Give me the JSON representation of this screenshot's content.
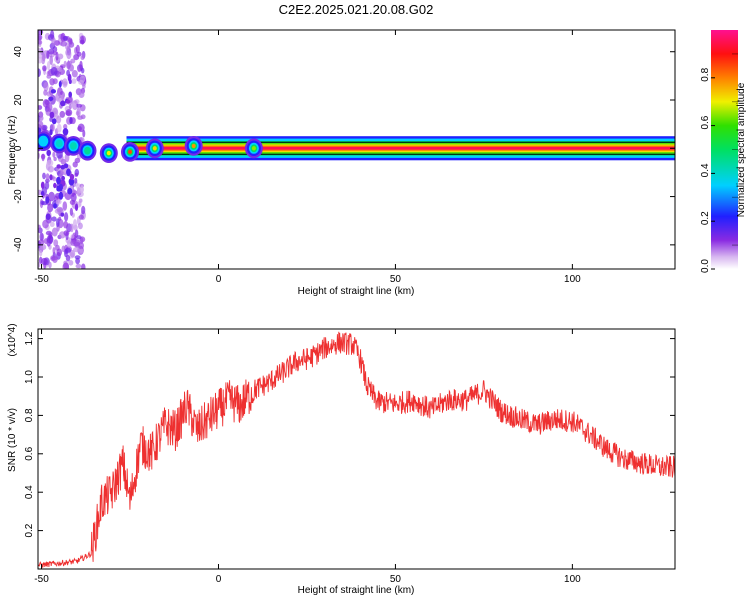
{
  "title": "C2E2.2025.021.20.08.G02",
  "chart_data": [
    {
      "type": "heatmap",
      "xlabel": "Height of straight line (km)",
      "ylabel": "Frequency (Hz)",
      "xlim": [
        -51,
        129
      ],
      "ylim": [
        -50,
        49
      ],
      "xticks": [
        -50,
        0,
        50,
        100
      ],
      "yticks": [
        -40,
        -20,
        0,
        20,
        40
      ],
      "colorbar": {
        "label": "Normalized spectral amplitude",
        "range": [
          0.0,
          1.0
        ],
        "ticks": [
          "0.0",
          "0.2",
          "0.4",
          "0.6",
          "0.8"
        ],
        "tick_values": [
          0.0,
          0.2,
          0.4,
          0.6,
          0.8
        ]
      },
      "band": {
        "center_hz": 0,
        "x_start": -26,
        "x_end": 129,
        "peak_amplitude": 0.95
      },
      "clusters": [
        {
          "x": -49.5,
          "y": 3,
          "amp": 0.35
        },
        {
          "x": -45,
          "y": 2,
          "amp": 0.4
        },
        {
          "x": -41,
          "y": 1,
          "amp": 0.42
        },
        {
          "x": -37,
          "y": -1,
          "amp": 0.45
        },
        {
          "x": -31,
          "y": -2,
          "amp": 0.7
        },
        {
          "x": -25,
          "y": -1.5,
          "amp": 0.85
        },
        {
          "x": -18,
          "y": 0,
          "amp": 0.72
        },
        {
          "x": -7,
          "y": 1,
          "amp": 0.78
        },
        {
          "x": 10,
          "y": 0,
          "amp": 0.65
        }
      ],
      "noise_region": {
        "x_start": -51,
        "x_end": -38,
        "amp_max": 0.1
      }
    },
    {
      "type": "line",
      "xlabel": "Height of straight line (km)",
      "ylabel": "SNR (10 * v/v)",
      "multiplier": "(x10^4)",
      "xlim": [
        -51,
        129
      ],
      "ylim": [
        0,
        1.25
      ],
      "xticks": [
        -50,
        0,
        50,
        100
      ],
      "yticks": [
        0.2,
        0.4,
        0.6,
        0.8,
        1.0,
        1.2
      ],
      "color": "#ee3030",
      "series": [
        {
          "x": [
            -51,
            -45,
            -40,
            -36,
            -33,
            -30,
            -27,
            -25,
            -22,
            -19,
            -15,
            -12,
            -9,
            -6,
            -3,
            0,
            3,
            6,
            10,
            14,
            18,
            22,
            26,
            30,
            34,
            38,
            40,
            42,
            45,
            50,
            55,
            60,
            65,
            70,
            75,
            80,
            85,
            90,
            95,
            100,
            105,
            110,
            115,
            120,
            125,
            129
          ],
          "y": [
            0.02,
            0.03,
            0.04,
            0.08,
            0.35,
            0.4,
            0.55,
            0.35,
            0.65,
            0.6,
            0.75,
            0.72,
            0.85,
            0.72,
            0.78,
            0.83,
            0.88,
            0.85,
            0.93,
            0.97,
            1.02,
            1.08,
            1.1,
            1.15,
            1.18,
            1.17,
            1.1,
            0.95,
            0.87,
            0.86,
            0.88,
            0.83,
            0.88,
            0.88,
            0.93,
            0.82,
            0.78,
            0.75,
            0.78,
            0.77,
            0.7,
            0.62,
            0.57,
            0.55,
            0.53,
            0.53
          ],
          "noise_amp": 0.06
        }
      ]
    }
  ]
}
